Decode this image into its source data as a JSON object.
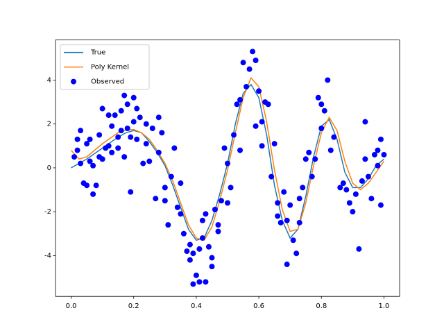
{
  "chart_data": {
    "type": "line",
    "xlim": [
      -0.05,
      1.05
    ],
    "ylim": [
      -5.86,
      5.83
    ],
    "xticks": [
      {
        "value": 0,
        "label": "0.0"
      },
      0.2,
      0.4,
      0.6,
      0.8,
      {
        "value": 1,
        "label": "1.0"
      }
    ],
    "yticks": [
      -4,
      -2,
      0,
      2,
      4
    ],
    "legend": "upper left",
    "series": [
      {
        "name": "True",
        "type": "line",
        "color": "#1f77b4",
        "x": [
          0,
          0.025,
          0.05,
          0.075,
          0.1,
          0.125,
          0.15,
          0.175,
          0.2,
          0.225,
          0.25,
          0.275,
          0.3,
          0.325,
          0.35,
          0.375,
          0.4,
          0.425,
          0.45,
          0.475,
          0.5,
          0.525,
          0.55,
          0.575,
          0.6,
          0.625,
          0.65,
          0.675,
          0.7,
          0.725,
          0.75,
          0.775,
          0.8,
          0.825,
          0.85,
          0.875,
          0.9,
          0.925,
          0.95,
          0.975,
          1
        ],
        "values": [
          0,
          0.2,
          0.4,
          0.65,
          0.9,
          1.15,
          1.4,
          1.6,
          1.7,
          1.6,
          1.2,
          0.7,
          0.1,
          -0.8,
          -1.8,
          -2.8,
          -3.3,
          -3.2,
          -2.4,
          -1.2,
          0.2,
          2.0,
          3.4,
          3.8,
          3.2,
          1.5,
          -0.8,
          -2.4,
          -3.2,
          -2.8,
          -1.3,
          0.5,
          1.9,
          2.2,
          1.3,
          -0.2,
          -0.9,
          -0.9,
          -0.5,
          0.1,
          0.4
        ]
      },
      {
        "name": "Poly Kernel",
        "type": "line",
        "color": "#ff7f0e",
        "x": [
          0,
          0.025,
          0.05,
          0.075,
          0.1,
          0.125,
          0.15,
          0.175,
          0.2,
          0.225,
          0.25,
          0.275,
          0.3,
          0.325,
          0.35,
          0.375,
          0.4,
          0.425,
          0.45,
          0.475,
          0.5,
          0.525,
          0.55,
          0.575,
          0.6,
          0.625,
          0.65,
          0.675,
          0.7,
          0.725,
          0.75,
          0.775,
          0.8,
          0.825,
          0.85,
          0.875,
          0.9,
          0.925,
          0.95,
          0.975,
          1
        ],
        "values": [
          0.8,
          0.4,
          0.5,
          0.8,
          1.1,
          1.35,
          1.6,
          1.72,
          1.75,
          1.6,
          1.3,
          0.8,
          0.2,
          -0.6,
          -1.6,
          -2.6,
          -3.2,
          -3.3,
          -2.7,
          -1.5,
          -0.1,
          1.6,
          3.2,
          4.1,
          3.7,
          2.1,
          -0.1,
          -1.9,
          -2.9,
          -2.8,
          -1.6,
          0.1,
          1.6,
          2.3,
          1.7,
          0.3,
          -0.7,
          -1.0,
          -0.7,
          -0.2,
          0.3
        ]
      },
      {
        "name": "Observed",
        "type": "scatter",
        "color": "#0000ff",
        "x": [
          0.01,
          0.02,
          0.02,
          0.03,
          0.03,
          0.04,
          0.05,
          0.05,
          0.06,
          0.06,
          0.07,
          0.08,
          0.09,
          0.09,
          0.1,
          0.1,
          0.11,
          0.12,
          0.13,
          0.13,
          0.14,
          0.15,
          0.15,
          0.16,
          0.17,
          0.17,
          0.18,
          0.18,
          0.19,
          0.19,
          0.2,
          0.2,
          0.21,
          0.21,
          0.22,
          0.23,
          0.24,
          0.24,
          0.25,
          0.26,
          0.27,
          0.28,
          0.28,
          0.29,
          0.3,
          0.3,
          0.31,
          0.32,
          0.33,
          0.34,
          0.35,
          0.36,
          0.37,
          0.38,
          0.38,
          0.39,
          0.39,
          0.4,
          0.41,
          0.41,
          0.42,
          0.42,
          0.43,
          0.43,
          0.44,
          0.45,
          0.45,
          0.46,
          0.47,
          0.48,
          0.49,
          0.5,
          0.5,
          0.51,
          0.52,
          0.53,
          0.54,
          0.54,
          0.55,
          0.56,
          0.57,
          0.58,
          0.59,
          0.59,
          0.6,
          0.61,
          0.61,
          0.62,
          0.63,
          0.64,
          0.65,
          0.66,
          0.67,
          0.68,
          0.69,
          0.69,
          0.7,
          0.71,
          0.72,
          0.73,
          0.74,
          0.75,
          0.76,
          0.77,
          0.78,
          0.79,
          0.8,
          0.8,
          0.81,
          0.82,
          0.83,
          0.84,
          0.86,
          0.87,
          0.88,
          0.89,
          0.9,
          0.91,
          0.92,
          0.93,
          0.94,
          0.94,
          0.95,
          0.96,
          0.97,
          0.98,
          0.99,
          0.99,
          1.0,
          0.07,
          0.12,
          0.16,
          0.35,
          0.47,
          0.66,
          0.73,
          0.98
        ],
        "values": [
          0.5,
          0.8,
          1.3,
          1.7,
          0.2,
          -0.7,
          -0.8,
          1.1,
          1.3,
          0.3,
          -1.2,
          -0.8,
          0.5,
          1.5,
          2.7,
          0.4,
          0.9,
          2.4,
          1.9,
          0.7,
          2.4,
          0.9,
          1.4,
          2.6,
          3.3,
          0.5,
          2.9,
          1.8,
          1.4,
          -1.1,
          3.2,
          2.1,
          2.7,
          1.3,
          2.3,
          0.2,
          2.0,
          1.1,
          0.3,
          1.8,
          -1.4,
          2.3,
          0.7,
          1.6,
          -0.9,
          -1.5,
          -2.6,
          -0.4,
          0.9,
          -1.8,
          -2.1,
          -3.0,
          -3.8,
          -3.5,
          -4.2,
          -3.9,
          -5.3,
          -4.9,
          -3.7,
          -5.2,
          -2.4,
          -3.2,
          -5.2,
          -2.1,
          -3.6,
          -4.1,
          -4.5,
          -1.9,
          -2.6,
          -1.5,
          0.9,
          -1.6,
          0.2,
          -0.9,
          1.5,
          2.9,
          3.1,
          0.8,
          4.8,
          3.7,
          4.5,
          5.3,
          4.9,
          1.9,
          3.5,
          2.1,
          1.0,
          3.0,
          2.9,
          -0.4,
          1.1,
          -2.2,
          -2.5,
          -1.1,
          -4.4,
          -2.4,
          -1.7,
          -3.3,
          -3.9,
          -1.4,
          -0.9,
          0.4,
          0.7,
          -0.4,
          0.4,
          3.2,
          2.9,
          1.8,
          2.6,
          4.0,
          0.8,
          1.4,
          -0.9,
          -0.7,
          -1.0,
          -1.6,
          -2.0,
          -1.2,
          -3.7,
          -0.6,
          2.1,
          0.4,
          -0.4,
          -1.4,
          0.6,
          0.8,
          1.3,
          -1.7,
          0.6,
          0.1,
          1.0,
          1.7,
          -0.7,
          -2.9,
          -1.6,
          -2.5,
          0.1
        ]
      }
    ]
  }
}
